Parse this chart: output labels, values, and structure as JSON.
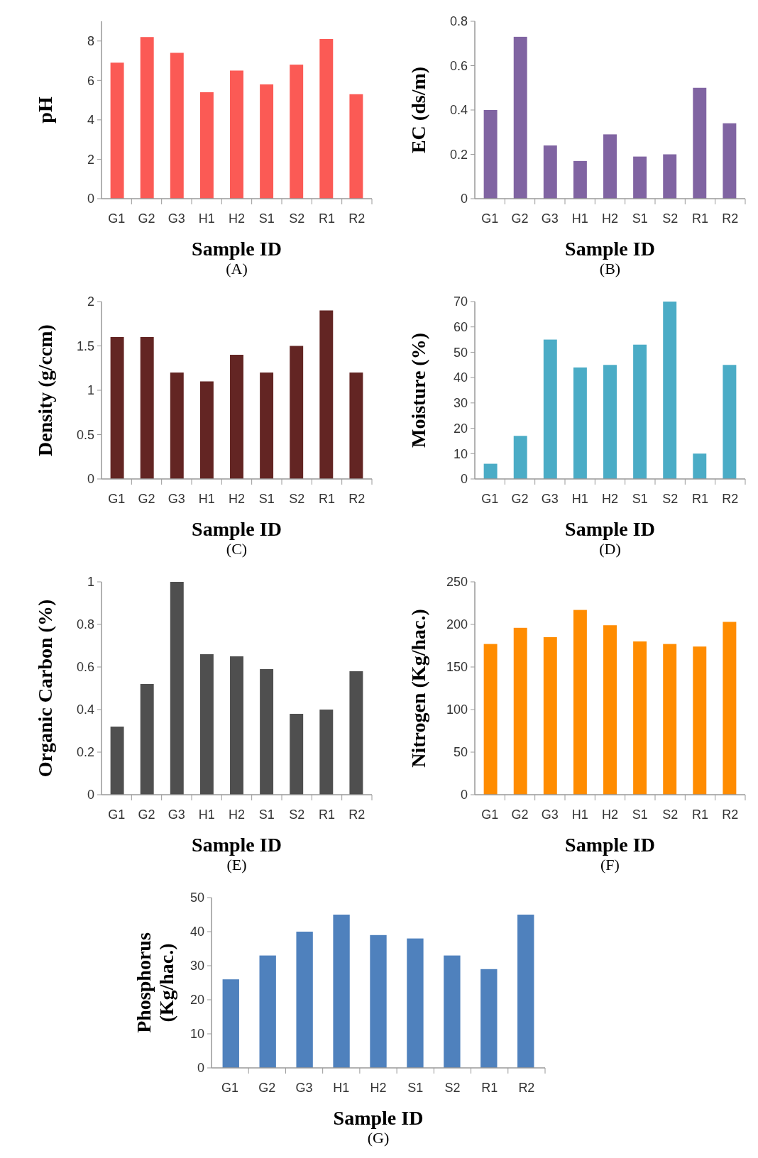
{
  "chart_data": [
    {
      "type": "bar",
      "ylabel": "pH",
      "xlabel": "Sample ID",
      "annotations": [
        "(A)"
      ],
      "categories": [
        "G1",
        "G2",
        "G3",
        "H1",
        "H2",
        "S1",
        "S2",
        "R1",
        "R2"
      ],
      "values": [
        6.9,
        8.2,
        7.4,
        5.4,
        6.5,
        5.8,
        6.8,
        8.1,
        5.3
      ],
      "color": "#fb5a55",
      "ylim": [
        0,
        9
      ],
      "yticks": [
        0,
        2,
        4,
        6,
        8
      ]
    },
    {
      "type": "bar",
      "ylabel": "EC (ds/m)",
      "xlabel": "Sample ID",
      "annotations": [
        "(B)"
      ],
      "categories": [
        "G1",
        "G2",
        "G3",
        "H1",
        "H2",
        "S1",
        "S2",
        "R1",
        "R2"
      ],
      "values": [
        0.4,
        0.73,
        0.24,
        0.17,
        0.29,
        0.19,
        0.2,
        0.5,
        0.34
      ],
      "color": "#8064a2",
      "ylim": [
        0,
        0.8
      ],
      "yticks": [
        0,
        0.2,
        0.4,
        0.6,
        {
          "value": 0.8,
          "label": "0.8"
        }
      ]
    },
    {
      "type": "bar",
      "ylabel": "Density (g/ccm)",
      "xlabel": "Sample ID",
      "annotations": [
        "(C)"
      ],
      "categories": [
        "G1",
        "G2",
        "G3",
        "H1",
        "H2",
        "S1",
        "S2",
        "R1",
        "R2"
      ],
      "values": [
        1.6,
        1.6,
        1.2,
        1.1,
        1.4,
        1.2,
        1.5,
        1.9,
        1.2
      ],
      "color": "#632523",
      "ylim": [
        0,
        2
      ],
      "yticks": [
        0,
        0.5,
        1,
        1.5,
        2
      ]
    },
    {
      "type": "bar",
      "ylabel": "Moisture (%)",
      "xlabel": "Sample ID",
      "annotations": [
        "(D)"
      ],
      "categories": [
        "G1",
        "G2",
        "G3",
        "H1",
        "H2",
        "S1",
        "S2",
        "R1",
        "R2"
      ],
      "values": [
        6,
        17,
        55,
        44,
        45,
        53,
        70,
        10,
        45
      ],
      "color": "#4bacc6",
      "ylim": [
        0,
        70
      ],
      "yticks": [
        0,
        10,
        20,
        30,
        40,
        50,
        60,
        70
      ]
    },
    {
      "type": "bar",
      "ylabel": "Organic Carbon (%)",
      "xlabel": "Sample ID",
      "annotations": [
        "(E)"
      ],
      "categories": [
        "G1",
        "G2",
        "G3",
        "H1",
        "H2",
        "S1",
        "S2",
        "R1",
        "R2"
      ],
      "values": [
        0.32,
        0.52,
        1.0,
        0.66,
        0.65,
        0.59,
        0.38,
        0.4,
        0.58
      ],
      "color": "#4f4f4f",
      "ylim": [
        0,
        1
      ],
      "yticks": [
        0,
        0.2,
        0.4,
        0.6,
        0.8,
        1
      ]
    },
    {
      "type": "bar",
      "ylabel": "Nitrogen (Kg/hac.)",
      "xlabel": "Sample ID",
      "annotations": [
        "(F)"
      ],
      "categories": [
        "G1",
        "G2",
        "G3",
        "H1",
        "H2",
        "S1",
        "S2",
        "R1",
        "R2"
      ],
      "values": [
        177,
        196,
        185,
        217,
        199,
        180,
        177,
        174,
        203
      ],
      "color": "#ff8c00",
      "ylim": [
        0,
        250
      ],
      "yticks": [
        0,
        50,
        100,
        150,
        200,
        250
      ]
    },
    {
      "type": "bar",
      "ylabel": "Phosphorus (Kg/hac.)",
      "xlabel": "Sample ID",
      "annotations": [
        "(G)"
      ],
      "categories": [
        "G1",
        "G2",
        "G3",
        "H1",
        "H2",
        "S1",
        "S2",
        "R1",
        "R2"
      ],
      "values": [
        26,
        33,
        40,
        45,
        39,
        38,
        33,
        29,
        45
      ],
      "color": "#4f81bd",
      "ylim": [
        0,
        50
      ],
      "yticks": [
        0,
        10,
        20,
        30,
        40,
        50
      ]
    }
  ]
}
